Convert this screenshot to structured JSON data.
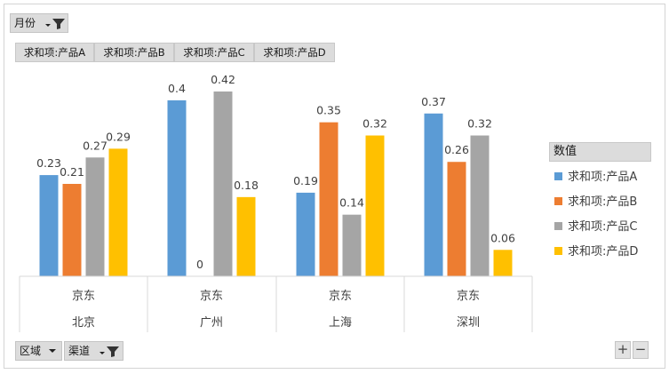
{
  "filters": {
    "top": {
      "label": "月份",
      "icon": "dropdown-filter-icon"
    },
    "bottom": [
      {
        "label": "区域",
        "icon": "dropdown-arrow-icon"
      },
      {
        "label": "渠道",
        "icon": "dropdown-filter-icon"
      }
    ]
  },
  "value_tags": [
    "求和项:产品A",
    "求和项:产品B",
    "求和项:产品C",
    "求和项:产品D"
  ],
  "legend": {
    "title": "数值",
    "items": [
      {
        "label": "求和项:产品A",
        "color": "#5b9bd5"
      },
      {
        "label": "求和项:产品B",
        "color": "#ed7d31"
      },
      {
        "label": "求和项:产品C",
        "color": "#a5a5a5"
      },
      {
        "label": "求和项:产品D",
        "color": "#ffc000"
      }
    ]
  },
  "zoom": {
    "plus": "+",
    "minus": "−"
  },
  "chart_data": {
    "type": "bar",
    "categories": [
      {
        "channel": "京东",
        "region": "北京"
      },
      {
        "channel": "京东",
        "region": "广州"
      },
      {
        "channel": "京东",
        "region": "上海"
      },
      {
        "channel": "京东",
        "region": "深圳"
      }
    ],
    "series": [
      {
        "name": "求和项:产品A",
        "color": "#5b9bd5",
        "values": [
          0.23,
          0.4,
          0.19,
          0.37
        ],
        "labels": [
          "0.23",
          "0.4",
          "0.19",
          "0.37"
        ]
      },
      {
        "name": "求和项:产品B",
        "color": "#ed7d31",
        "values": [
          0.21,
          0,
          0.35,
          0.26
        ],
        "labels": [
          "0.21",
          "0",
          "0.35",
          "0.26"
        ]
      },
      {
        "name": "求和项:产品C",
        "color": "#a5a5a5",
        "values": [
          0.27,
          0.42,
          0.14,
          0.32
        ],
        "labels": [
          "0.27",
          "0.42",
          "0.14",
          "0.32"
        ]
      },
      {
        "name": "求和项:产品D",
        "color": "#ffc000",
        "values": [
          0.29,
          0.18,
          0.32,
          0.06
        ],
        "labels": [
          "0.29",
          "0.18",
          "0.32",
          "0.06"
        ]
      }
    ],
    "axis_visible": false,
    "grid": false,
    "legend_position": "right"
  }
}
